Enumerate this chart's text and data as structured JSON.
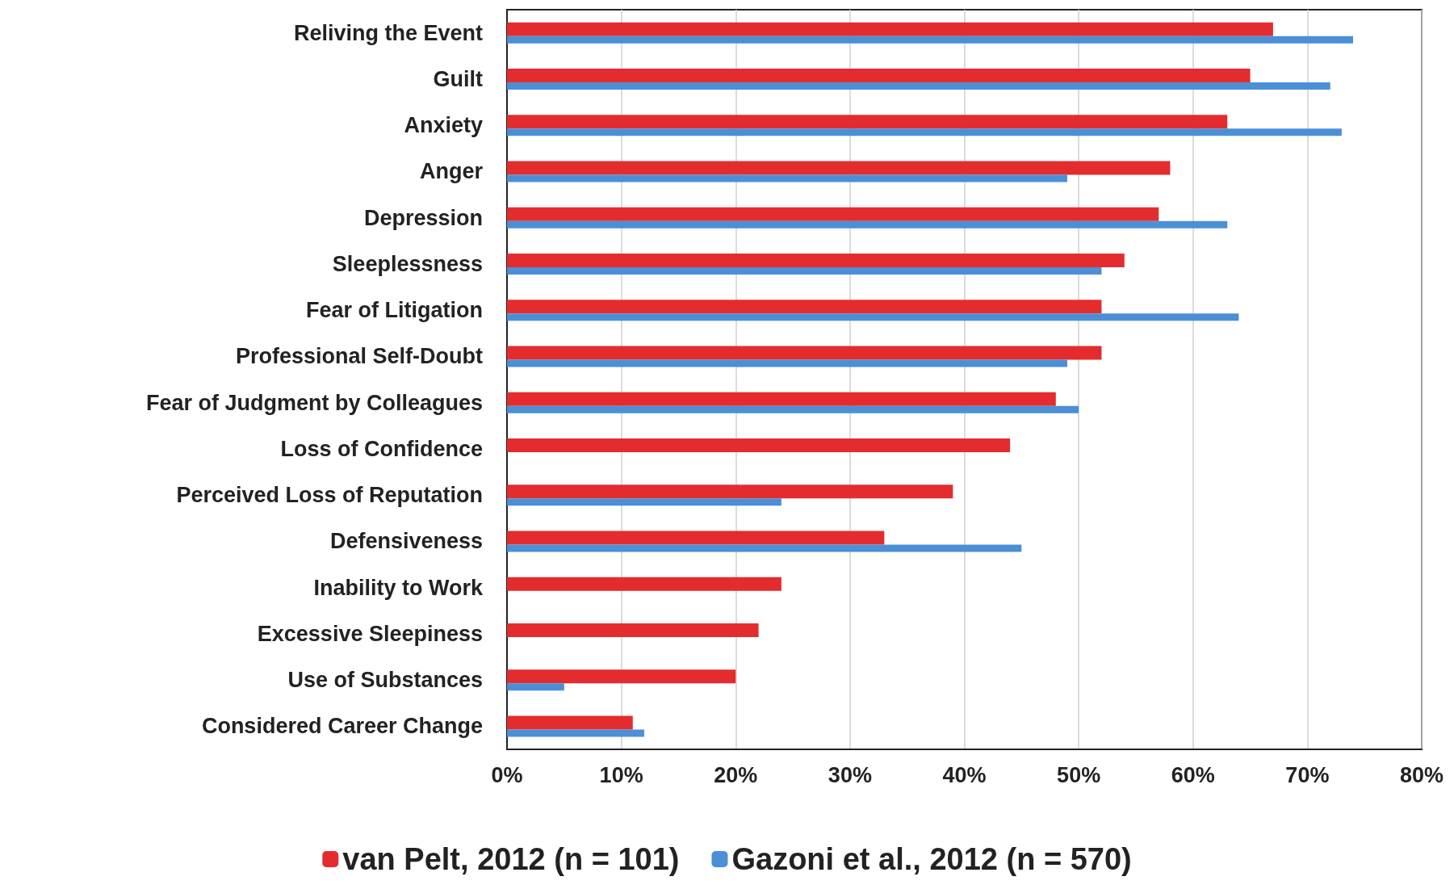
{
  "chart_data": {
    "type": "bar",
    "orientation": "horizontal",
    "categories": [
      "Reliving the Event",
      "Guilt",
      "Anxiety",
      "Anger",
      "Depression",
      "Sleeplessness",
      "Fear of Litigation",
      "Professional Self-Doubt",
      "Fear of Judgment by Colleagues",
      "Loss of Confidence",
      "Perceived Loss of Reputation",
      "Defensiveness",
      "Inability to Work",
      "Excessive Sleepiness",
      "Use of Substances",
      "Considered Career Change"
    ],
    "series": [
      {
        "name": "van Pelt, 2012 (n = 101)",
        "color": "#e42c2f",
        "values": [
          67,
          65,
          63,
          58,
          57,
          54,
          52,
          52,
          48,
          44,
          39,
          33,
          24,
          22,
          20,
          11
        ]
      },
      {
        "name": "Gazoni et al., 2012 (n = 570)",
        "color": "#4b8fd6",
        "values": [
          74,
          72,
          73,
          49,
          63,
          52,
          64,
          49,
          50,
          null,
          24,
          45,
          null,
          null,
          5,
          12
        ]
      }
    ],
    "xlim": [
      0,
      80
    ],
    "xticks": [
      {
        "value": 0,
        "label": "0%"
      },
      {
        "value": 10,
        "label": "10%"
      },
      {
        "value": 20,
        "label": "20%"
      },
      {
        "value": 30,
        "label": "30%"
      },
      {
        "value": 40,
        "label": "40%"
      },
      {
        "value": 50,
        "label": "50%"
      },
      {
        "value": 60,
        "label": "60%"
      },
      {
        "value": 70,
        "label": "70%"
      },
      {
        "value": 80,
        "label": "80%"
      }
    ],
    "grid": "x",
    "legend": "bottom"
  }
}
